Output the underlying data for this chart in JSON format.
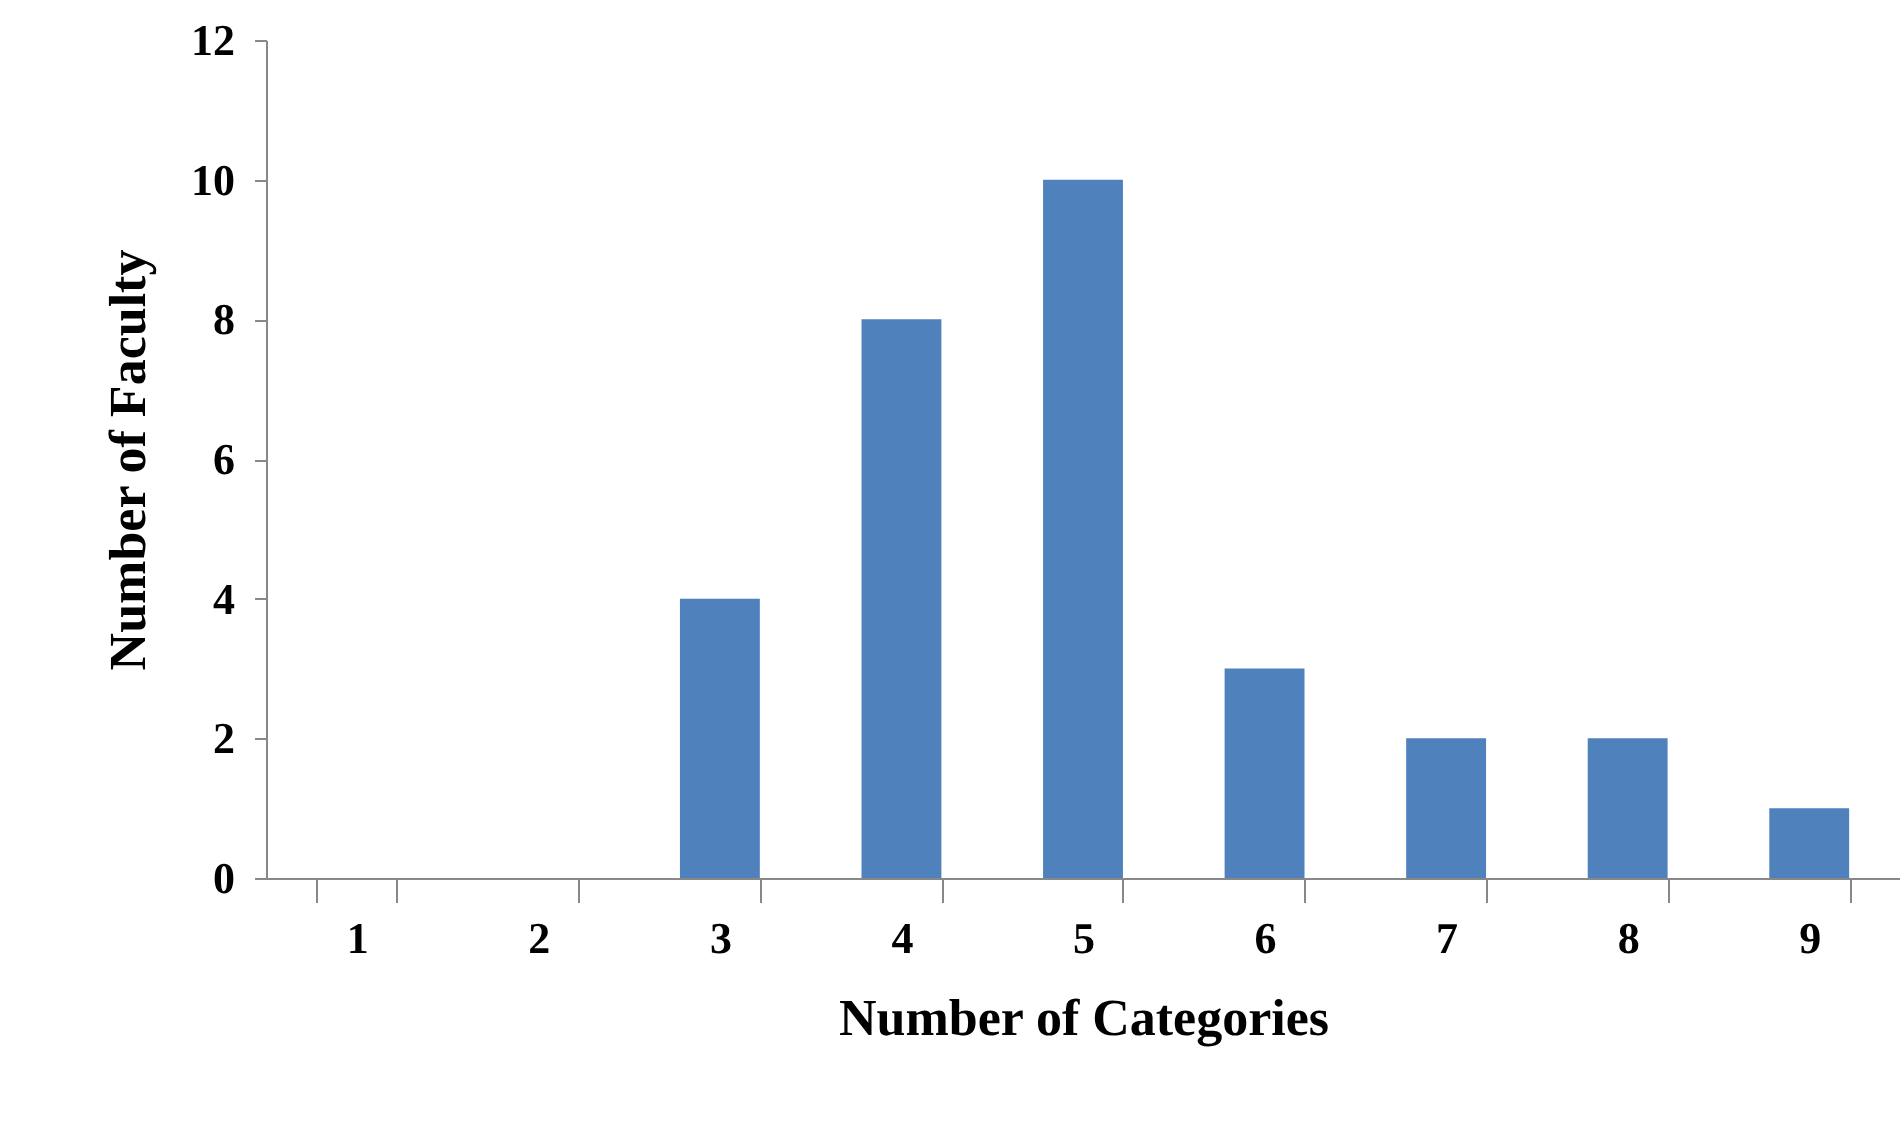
{
  "chart_data": {
    "type": "bar",
    "xlabel": "Number of Categories",
    "ylabel": "Number of Faculty",
    "categories": [
      "1",
      "2",
      "3",
      "4",
      "5",
      "6",
      "7",
      "8",
      "9"
    ],
    "values": [
      0,
      0,
      4,
      8,
      10,
      3,
      2,
      2,
      1
    ],
    "color": "#4f81bd",
    "ylim": [
      0,
      12
    ],
    "yticks": [
      0,
      2,
      4,
      6,
      8,
      10,
      12
    ],
    "grid": false
  }
}
